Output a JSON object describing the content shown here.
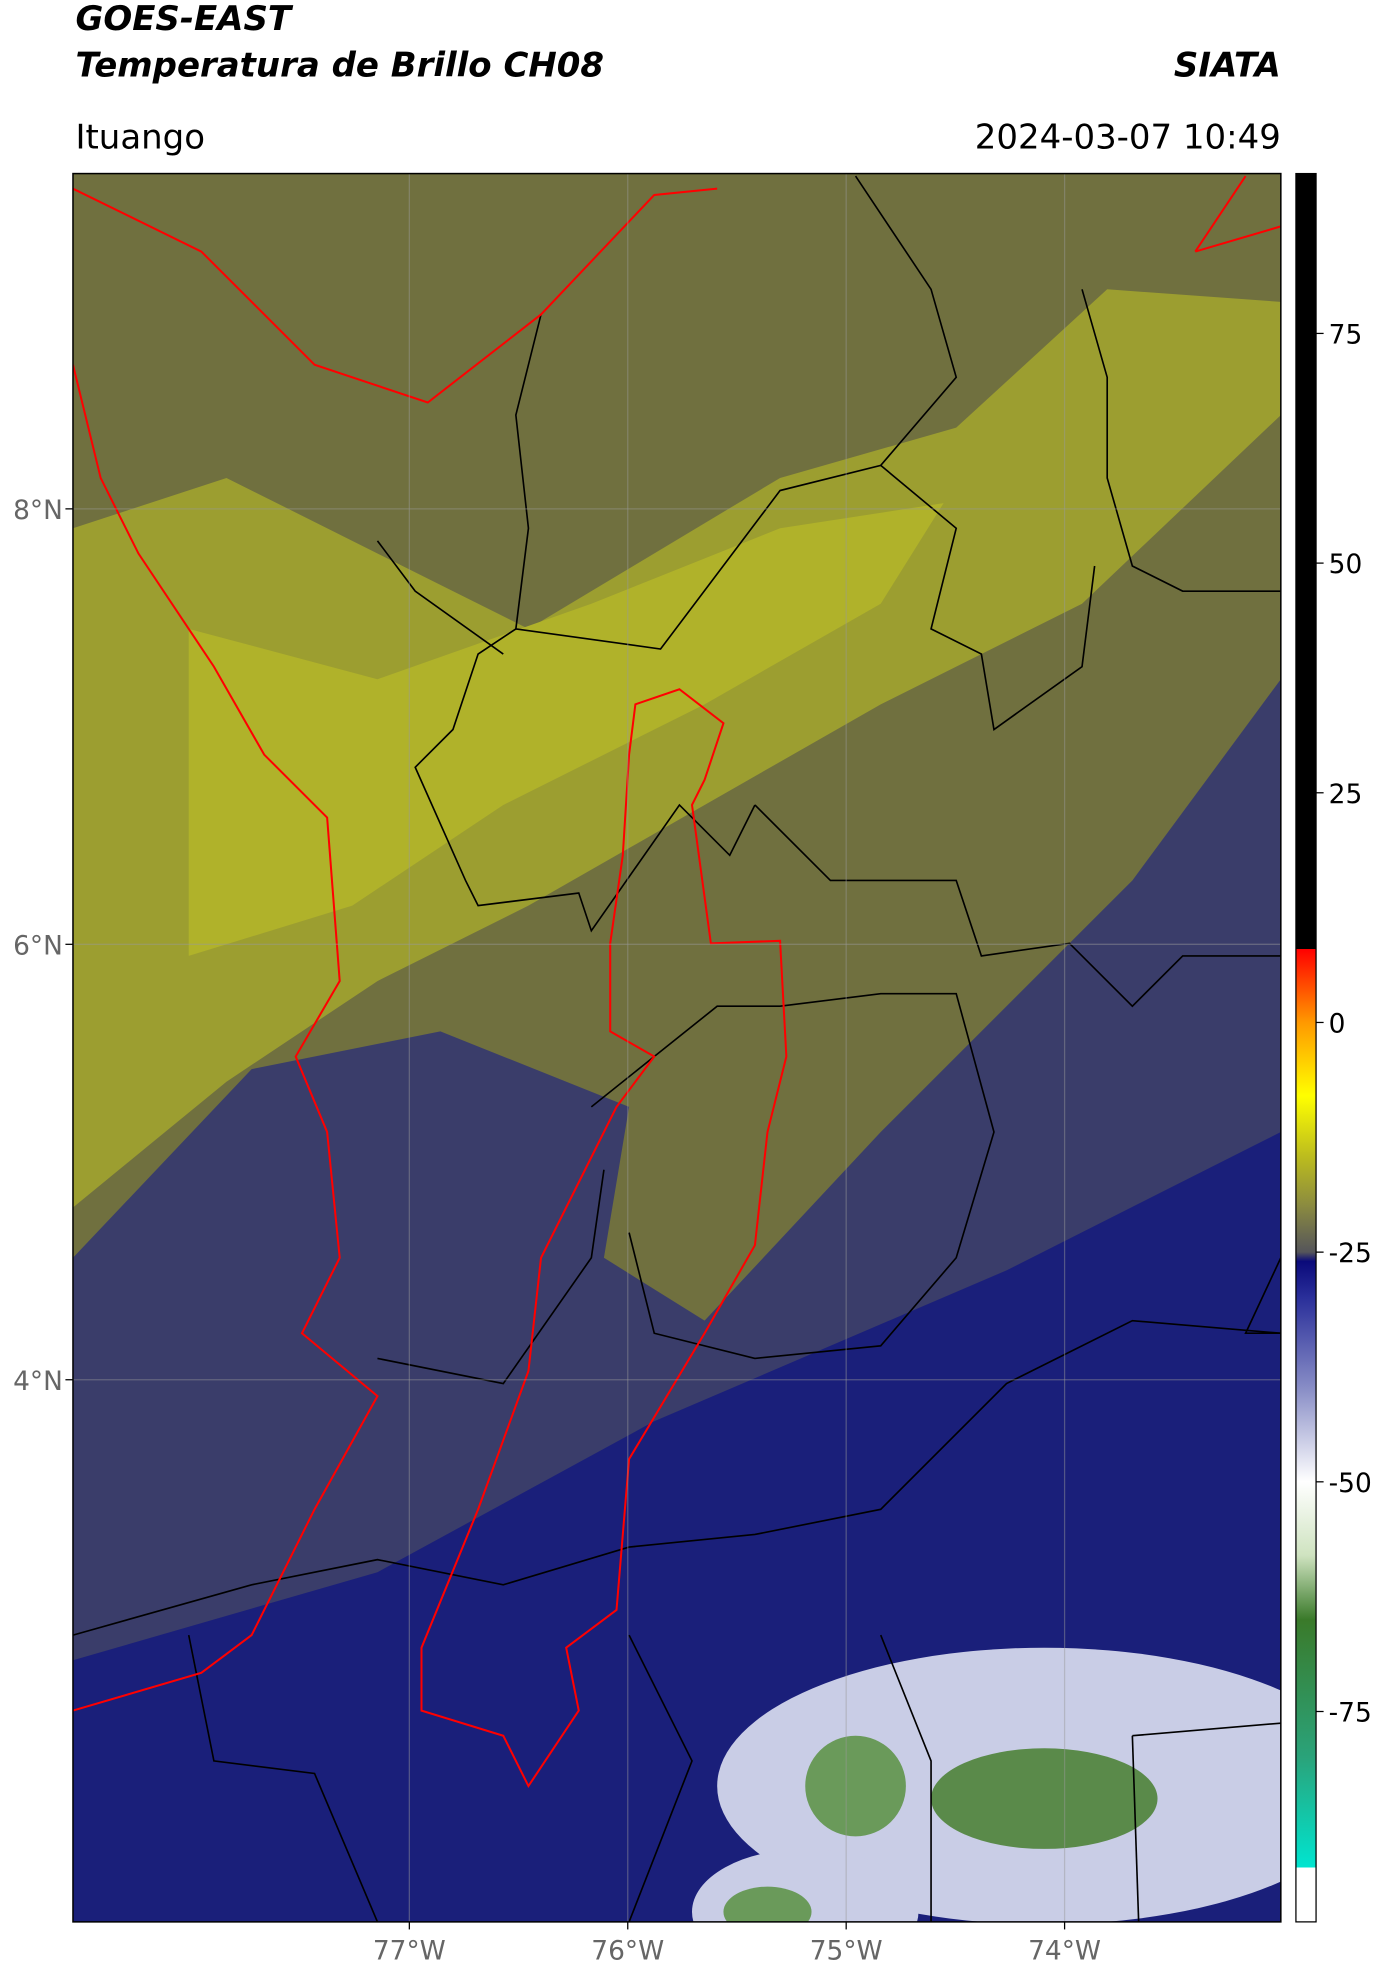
{
  "header": {
    "title": "GOES-EAST",
    "subtitle": "Temperatura de Brillo CH08",
    "source": "SIATA",
    "region": "Ituango",
    "datetime": "2024-03-07 10:49"
  },
  "map": {
    "lat_lim": [
      1.51,
      9.54
    ],
    "lon_lim": [
      -78.54,
      -73.01
    ],
    "grid": true,
    "lat_ticks": [
      {
        "value": 8,
        "label": "8°N"
      },
      {
        "value": 6,
        "label": "6°N"
      },
      {
        "value": 4,
        "label": "4°N"
      }
    ],
    "lon_ticks": [
      {
        "value": -77,
        "label": "77°W"
      },
      {
        "value": -76,
        "label": "76°W"
      },
      {
        "value": -75,
        "label": "75°W"
      },
      {
        "value": -74,
        "label": "74°W"
      }
    ]
  },
  "colorbar": {
    "lim": [
      -97.9,
      92.4
    ],
    "ticks": [
      75,
      50,
      25,
      0,
      -25,
      -50,
      -75
    ],
    "colormap": [
      {
        "value": 92.4,
        "color": "#000000"
      },
      {
        "value": 8,
        "color": "#000000"
      },
      {
        "value": 8,
        "color": "#ff0000"
      },
      {
        "value": 0,
        "color": "#ff9900"
      },
      {
        "value": -8,
        "color": "#ffff00"
      },
      {
        "value": -15,
        "color": "#b8b820"
      },
      {
        "value": -20,
        "color": "#8a8a40"
      },
      {
        "value": -25,
        "color": "#55555a"
      },
      {
        "value": -26,
        "color": "#0a0a7a"
      },
      {
        "value": -30,
        "color": "#2a2f9a"
      },
      {
        "value": -40,
        "color": "#8a8fc7"
      },
      {
        "value": -50,
        "color": "#ffffff"
      },
      {
        "value": -58,
        "color": "#cfe3c0"
      },
      {
        "value": -65,
        "color": "#3a7a2a"
      },
      {
        "value": -80,
        "color": "#2aa37a"
      },
      {
        "value": -92,
        "color": "#00e5d0"
      },
      {
        "value": -92,
        "color": "#ffffff"
      },
      {
        "value": -97.9,
        "color": "#ffffff"
      }
    ]
  }
}
